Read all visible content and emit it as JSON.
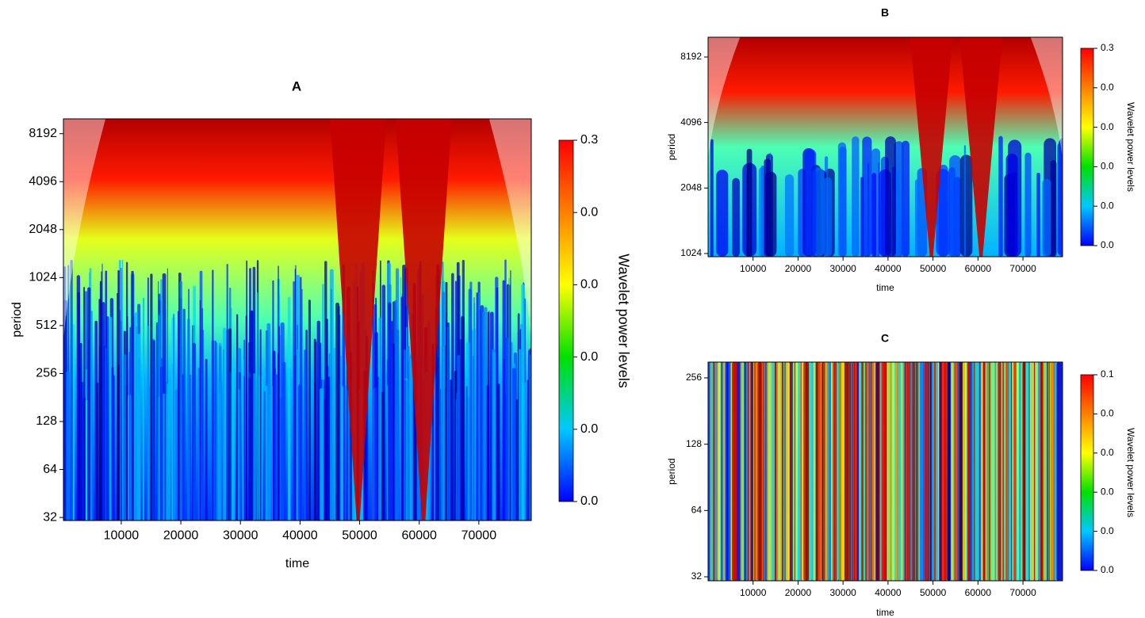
{
  "chart_data": [
    {
      "type": "heatmap",
      "title": "A",
      "x_label": "time",
      "y_label": "period",
      "y_scale": "log2",
      "xlim": [
        300,
        78800
      ],
      "xticks": [
        10000,
        20000,
        30000,
        40000,
        50000,
        60000,
        70000
      ],
      "ylim": [
        30.6,
        10150
      ],
      "yticks": [
        32,
        64,
        128,
        256,
        512,
        1024,
        2048,
        4096,
        8192
      ],
      "colorbar": {
        "label": "Wavelet power levels",
        "ticks": [
          {
            "value": 0,
            "label": "0.0"
          },
          {
            "value": 0.001,
            "label": "0.0"
          },
          {
            "value": 0.003,
            "label": "0.0"
          },
          {
            "value": 0.01,
            "label": "0.0"
          },
          {
            "value": 0.03,
            "label": "0.0"
          },
          0.3
        ],
        "colors": [
          "#0000ff",
          "#00c8ff",
          "#00e000",
          "#ffff00",
          "#ff8000",
          "#ff0000"
        ]
      }
    },
    {
      "type": "heatmap",
      "title": "B",
      "x_label": "time",
      "y_label": "period",
      "y_scale": "log2",
      "xlim": [
        0,
        78800
      ],
      "xticks": [
        10000,
        20000,
        30000,
        40000,
        50000,
        60000,
        70000
      ],
      "ylim": [
        990,
        10100
      ],
      "yticks": [
        1024,
        2048,
        4096,
        8192
      ],
      "colorbar": {
        "label": "Wavelet power levels",
        "ticks": [
          {
            "value": 0,
            "label": "0.0"
          },
          {
            "value": 0.001,
            "label": "0.0"
          },
          {
            "value": 0.003,
            "label": "0.0"
          },
          {
            "value": 0.01,
            "label": "0.0"
          },
          {
            "value": 0.03,
            "label": "0.0"
          },
          0.3
        ],
        "colors": [
          "#0000ff",
          "#00c8ff",
          "#00e000",
          "#ffff00",
          "#ff8000",
          "#ff0000"
        ]
      }
    },
    {
      "type": "heatmap",
      "title": "C",
      "x_label": "time",
      "y_label": "period",
      "y_scale": "log2",
      "xlim": [
        0,
        78800
      ],
      "xticks": [
        10000,
        20000,
        30000,
        40000,
        50000,
        60000,
        70000
      ],
      "ylim": [
        30.7,
        302
      ],
      "yticks": [
        32,
        64,
        128,
        256
      ],
      "colorbar": {
        "label": "Wavelet power levels",
        "ticks": [
          {
            "value": 0,
            "label": "0.0"
          },
          {
            "value": 0.001,
            "label": "0.0"
          },
          {
            "value": 0.002,
            "label": "0.0"
          },
          {
            "value": 0.005,
            "label": "0.0"
          },
          {
            "value": 0.01,
            "label": "0.0"
          },
          0.1
        ],
        "colors": [
          "#0000ff",
          "#00c8ff",
          "#00e000",
          "#ffff00",
          "#ff8000",
          "#ff0000"
        ]
      }
    }
  ]
}
